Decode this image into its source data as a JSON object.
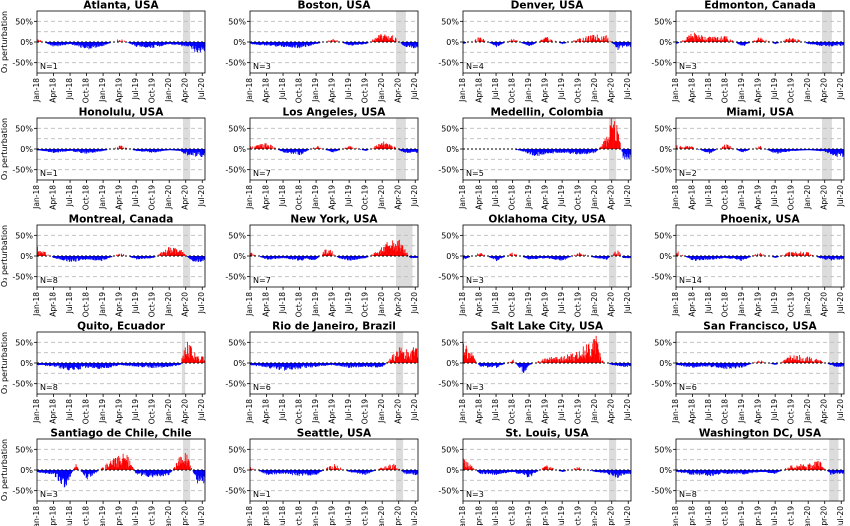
{
  "chart_data": {
    "type": "area",
    "ylabel": "O₃ perturbation",
    "yticks": [
      "50%",
      "0%",
      "-50%"
    ],
    "ylim": [
      -75,
      75
    ],
    "xtick_labels": [
      "Jan-18",
      "Apr-18",
      "Jul-18",
      "Oct-18",
      "Jan-19",
      "Apr-19",
      "Jul-19",
      "Oct-19",
      "Jan-20",
      "Apr-20",
      "Jul-20"
    ],
    "x_range_months": [
      "Jan-18",
      "Sep-20"
    ],
    "grid": "horizontal dashed at ±25% and ±50%",
    "colors": {
      "positive": "#ff0000",
      "negative": "#0000ff",
      "shade": "#dcdcdc",
      "grid": "#bbbbbb"
    },
    "panels": [
      {
        "title": "Atlanta, USA",
        "n": "N=1",
        "shade": [
          26.5,
          27.8
        ],
        "anchors": [
          [
            0,
            5
          ],
          [
            3,
            -10
          ],
          [
            6,
            -5
          ],
          [
            9,
            -15
          ],
          [
            12,
            -8
          ],
          [
            15,
            5
          ],
          [
            18,
            -10
          ],
          [
            21,
            -12
          ],
          [
            24,
            -5
          ],
          [
            27,
            -10
          ],
          [
            29,
            -20
          ]
        ]
      },
      {
        "title": "Boston, USA",
        "n": "N=3",
        "shade": [
          26.5,
          28.3
        ],
        "anchors": [
          [
            0,
            -5
          ],
          [
            3,
            -8
          ],
          [
            6,
            -10
          ],
          [
            9,
            -12
          ],
          [
            12,
            -5
          ],
          [
            15,
            5
          ],
          [
            18,
            -8
          ],
          [
            21,
            -5
          ],
          [
            24,
            15
          ],
          [
            26,
            10
          ],
          [
            28,
            -10
          ],
          [
            29,
            -12
          ]
        ]
      },
      {
        "title": "Denver, USA",
        "n": "N=4",
        "shade": [
          26.5,
          27.8
        ],
        "anchors": [
          [
            0,
            -5
          ],
          [
            3,
            8
          ],
          [
            6,
            -10
          ],
          [
            9,
            5
          ],
          [
            12,
            -10
          ],
          [
            15,
            8
          ],
          [
            18,
            -5
          ],
          [
            21,
            5
          ],
          [
            24,
            12
          ],
          [
            26,
            10
          ],
          [
            28,
            -15
          ],
          [
            29,
            -10
          ]
        ]
      },
      {
        "title": "Edmonton, Canada",
        "n": "N=3",
        "shade": [
          26.5,
          28.3
        ],
        "anchors": [
          [
            0,
            -5
          ],
          [
            3,
            15
          ],
          [
            6,
            8
          ],
          [
            9,
            10
          ],
          [
            12,
            -10
          ],
          [
            15,
            8
          ],
          [
            18,
            -5
          ],
          [
            21,
            8
          ],
          [
            24,
            -5
          ],
          [
            26,
            -8
          ],
          [
            28,
            -10
          ],
          [
            29,
            -8
          ]
        ]
      },
      {
        "title": "Honolulu, USA",
        "n": "N=1",
        "shade": [
          26.5,
          27.8
        ],
        "anchors": [
          [
            0,
            -3
          ],
          [
            3,
            -8
          ],
          [
            6,
            -5
          ],
          [
            9,
            -10
          ],
          [
            12,
            -5
          ],
          [
            15,
            5
          ],
          [
            18,
            -5
          ],
          [
            21,
            -8
          ],
          [
            24,
            -3
          ],
          [
            26,
            -5
          ],
          [
            27,
            -12
          ],
          [
            29,
            -15
          ]
        ]
      },
      {
        "title": "Los Angeles, USA",
        "n": "N=7",
        "shade": [
          26.5,
          28.3
        ],
        "anchors": [
          [
            0,
            3
          ],
          [
            3,
            10
          ],
          [
            6,
            -8
          ],
          [
            9,
            -12
          ],
          [
            12,
            5
          ],
          [
            15,
            -8
          ],
          [
            18,
            5
          ],
          [
            21,
            -5
          ],
          [
            24,
            12
          ],
          [
            26,
            5
          ],
          [
            28,
            -10
          ],
          [
            29,
            -8
          ]
        ]
      },
      {
        "title": "Medellin, Colombia",
        "n": "N=5",
        "shade": [
          26.5,
          27.8
        ],
        "anchors": [
          [
            0,
            0
          ],
          [
            3,
            0
          ],
          [
            6,
            0
          ],
          [
            9,
            0
          ],
          [
            12,
            -10
          ],
          [
            13,
            -15
          ],
          [
            15,
            -10
          ],
          [
            18,
            -8
          ],
          [
            21,
            -12
          ],
          [
            24,
            -8
          ],
          [
            26,
            20
          ],
          [
            27,
            55
          ],
          [
            28,
            40
          ],
          [
            29,
            -20
          ]
        ]
      },
      {
        "title": "Miami, USA",
        "n": "N=2",
        "shade": [
          26.5,
          28.3
        ],
        "anchors": [
          [
            0,
            5
          ],
          [
            3,
            3
          ],
          [
            6,
            -10
          ],
          [
            9,
            8
          ],
          [
            12,
            -8
          ],
          [
            15,
            5
          ],
          [
            18,
            -10
          ],
          [
            21,
            -5
          ],
          [
            24,
            -3
          ],
          [
            26,
            -5
          ],
          [
            28,
            -10
          ],
          [
            29,
            -15
          ]
        ]
      },
      {
        "title": "Montreal, Canada",
        "n": "N=8",
        "shade": [
          26.5,
          27.8
        ],
        "anchors": [
          [
            0,
            15
          ],
          [
            3,
            -5
          ],
          [
            6,
            -12
          ],
          [
            9,
            -8
          ],
          [
            12,
            -10
          ],
          [
            15,
            5
          ],
          [
            18,
            -8
          ],
          [
            21,
            -5
          ],
          [
            24,
            15
          ],
          [
            26,
            10
          ],
          [
            28,
            -10
          ],
          [
            29,
            -12
          ]
        ]
      },
      {
        "title": "New York, USA",
        "n": "N=7",
        "shade": [
          26.5,
          29.5
        ],
        "anchors": [
          [
            0,
            5
          ],
          [
            3,
            -8
          ],
          [
            6,
            -5
          ],
          [
            9,
            -10
          ],
          [
            12,
            -8
          ],
          [
            14,
            15
          ],
          [
            16,
            -5
          ],
          [
            18,
            -10
          ],
          [
            21,
            -5
          ],
          [
            24,
            15
          ],
          [
            25,
            25
          ],
          [
            27,
            30
          ],
          [
            29,
            -5
          ]
        ]
      },
      {
        "title": "Oklahoma City, USA",
        "n": "N=3",
        "shade": [
          26.5,
          27.8
        ],
        "anchors": [
          [
            0,
            -8
          ],
          [
            3,
            5
          ],
          [
            6,
            -10
          ],
          [
            9,
            5
          ],
          [
            12,
            -8
          ],
          [
            15,
            -5
          ],
          [
            18,
            -10
          ],
          [
            21,
            5
          ],
          [
            24,
            -5
          ],
          [
            26,
            -8
          ],
          [
            28,
            10
          ],
          [
            29,
            -5
          ]
        ]
      },
      {
        "title": "Phoenix, USA",
        "n": "N=14",
        "shade": [
          26.5,
          28.3
        ],
        "anchors": [
          [
            0,
            8
          ],
          [
            3,
            -10
          ],
          [
            6,
            -8
          ],
          [
            9,
            -5
          ],
          [
            12,
            -10
          ],
          [
            15,
            5
          ],
          [
            18,
            -5
          ],
          [
            21,
            8
          ],
          [
            24,
            5
          ],
          [
            26,
            -5
          ],
          [
            28,
            -10
          ],
          [
            29,
            -8
          ]
        ]
      },
      {
        "title": "Quito, Ecuador",
        "n": "N=8",
        "shade": [
          26.3,
          26.9
        ],
        "anchors": [
          [
            0,
            -5
          ],
          [
            3,
            -8
          ],
          [
            6,
            -15
          ],
          [
            9,
            -10
          ],
          [
            12,
            -12
          ],
          [
            15,
            -5
          ],
          [
            18,
            -8
          ],
          [
            21,
            -10
          ],
          [
            24,
            -8
          ],
          [
            26,
            -5
          ],
          [
            27,
            50
          ],
          [
            28,
            25
          ],
          [
            29,
            10
          ]
        ]
      },
      {
        "title": "Rio de Janeiro, Brazil",
        "n": "N=6",
        "shade": [
          26.5,
          27.8
        ],
        "anchors": [
          [
            0,
            -5
          ],
          [
            3,
            -10
          ],
          [
            6,
            -15
          ],
          [
            9,
            -12
          ],
          [
            12,
            -8
          ],
          [
            15,
            -5
          ],
          [
            18,
            -10
          ],
          [
            21,
            -8
          ],
          [
            24,
            -10
          ],
          [
            26,
            15
          ],
          [
            27,
            30
          ],
          [
            28,
            20
          ],
          [
            29,
            25
          ]
        ]
      },
      {
        "title": "Salt Lake City, USA",
        "n": "N=3",
        "shade": [
          26.5,
          27.8
        ],
        "anchors": [
          [
            0,
            45
          ],
          [
            1,
            25
          ],
          [
            3,
            -8
          ],
          [
            6,
            -10
          ],
          [
            9,
            5
          ],
          [
            11,
            -20
          ],
          [
            12,
            -5
          ],
          [
            15,
            8
          ],
          [
            18,
            10
          ],
          [
            21,
            20
          ],
          [
            23,
            40
          ],
          [
            24,
            60
          ],
          [
            25,
            5
          ],
          [
            27,
            -5
          ],
          [
            29,
            -8
          ]
        ]
      },
      {
        "title": "San Francisco, USA",
        "n": "N=6",
        "shade": [
          27.8,
          29.5
        ],
        "anchors": [
          [
            0,
            -5
          ],
          [
            3,
            -10
          ],
          [
            6,
            -8
          ],
          [
            9,
            -12
          ],
          [
            12,
            -10
          ],
          [
            15,
            5
          ],
          [
            18,
            -5
          ],
          [
            21,
            15
          ],
          [
            24,
            10
          ],
          [
            26,
            5
          ],
          [
            28,
            -5
          ],
          [
            29,
            -8
          ]
        ]
      },
      {
        "title": "Santiago de Chile, Chile",
        "n": "N=3",
        "shade": [
          26.5,
          27.8
        ],
        "anchors": [
          [
            0,
            -5
          ],
          [
            3,
            -10
          ],
          [
            5,
            -35
          ],
          [
            7,
            10
          ],
          [
            9,
            -20
          ],
          [
            12,
            5
          ],
          [
            14,
            20
          ],
          [
            16,
            30
          ],
          [
            18,
            -10
          ],
          [
            21,
            -15
          ],
          [
            24,
            -10
          ],
          [
            26,
            25
          ],
          [
            27,
            30
          ],
          [
            29,
            -25
          ]
        ]
      },
      {
        "title": "Seattle, USA",
        "n": "N=1",
        "shade": [
          26.5,
          27.8
        ],
        "anchors": [
          [
            0,
            5
          ],
          [
            3,
            -10
          ],
          [
            6,
            -8
          ],
          [
            9,
            -12
          ],
          [
            12,
            -10
          ],
          [
            15,
            10
          ],
          [
            18,
            -5
          ],
          [
            21,
            -10
          ],
          [
            24,
            5
          ],
          [
            26,
            10
          ],
          [
            28,
            -8
          ],
          [
            29,
            -10
          ]
        ]
      },
      {
        "title": "St. Louis, USA",
        "n": "N=3",
        "shade": [
          26.5,
          27.8
        ],
        "anchors": [
          [
            0,
            20
          ],
          [
            3,
            -8
          ],
          [
            6,
            -10
          ],
          [
            9,
            -5
          ],
          [
            12,
            -15
          ],
          [
            15,
            8
          ],
          [
            18,
            -5
          ],
          [
            21,
            5
          ],
          [
            24,
            -5
          ],
          [
            26,
            -8
          ],
          [
            28,
            -15
          ],
          [
            29,
            -10
          ]
        ]
      },
      {
        "title": "Washington DC, USA",
        "n": "N=8",
        "shade": [
          27.8,
          29.5
        ],
        "anchors": [
          [
            0,
            -5
          ],
          [
            3,
            -10
          ],
          [
            6,
            -12
          ],
          [
            9,
            -8
          ],
          [
            12,
            -10
          ],
          [
            15,
            -5
          ],
          [
            18,
            -8
          ],
          [
            21,
            8
          ],
          [
            24,
            10
          ],
          [
            26,
            15
          ],
          [
            28,
            -10
          ],
          [
            29,
            -8
          ]
        ]
      }
    ]
  }
}
